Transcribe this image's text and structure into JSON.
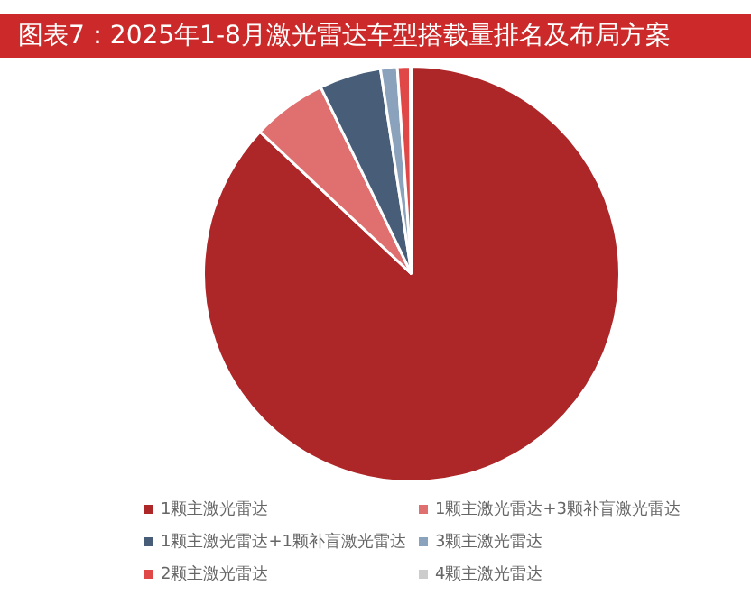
{
  "chart_data": {
    "type": "pie",
    "title": "图表7：2025年1-8月激光雷达车型搭载量排名及布局方案",
    "categories": [
      "1颗主激光雷达",
      "1颗主激光雷达+3颗补盲激光雷达",
      "1颗主激光雷达+1颗补盲激光雷达",
      "3颗主激光雷达",
      "2颗主激光雷达",
      "4颗主激光雷达"
    ],
    "values": [
      87.0,
      5.8,
      4.8,
      1.3,
      1.0,
      0.1
    ],
    "colors": [
      "#ad2628",
      "#e07070",
      "#475d78",
      "#8aa2bb",
      "#e04848",
      "#cccccc"
    ],
    "legend": "bottom"
  }
}
